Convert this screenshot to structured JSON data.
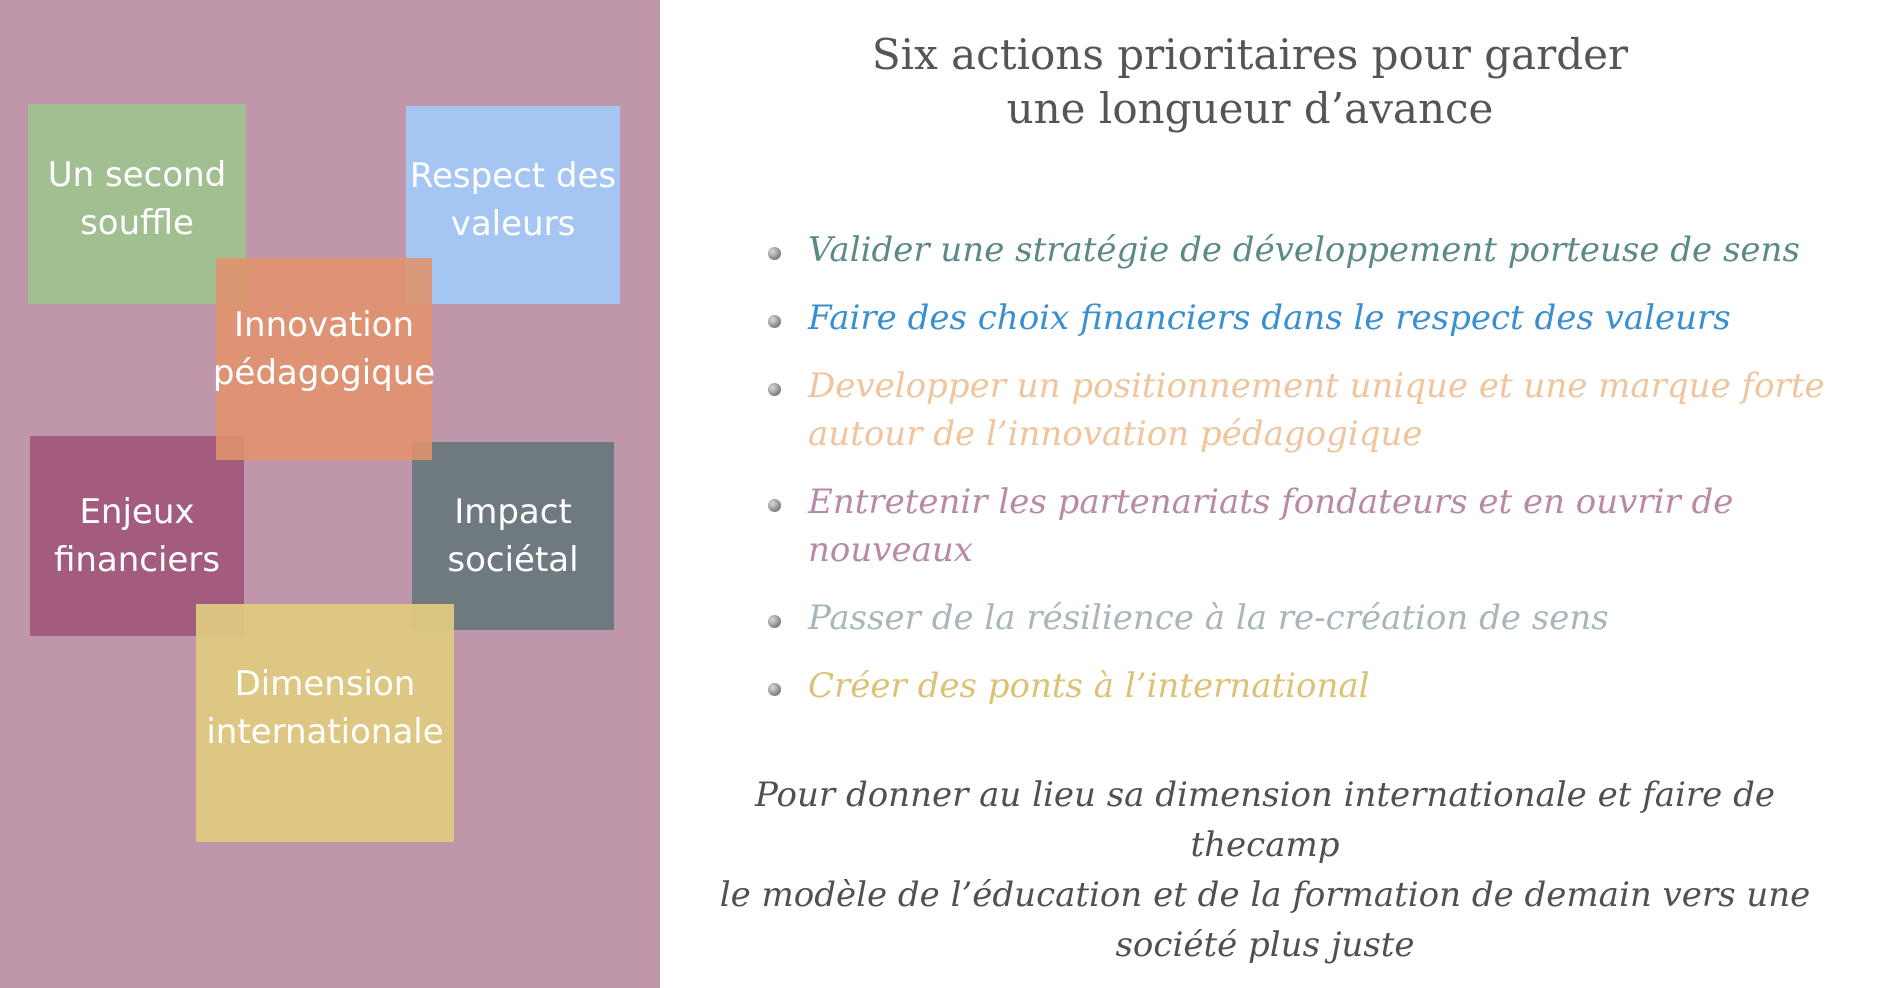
{
  "diagram": {
    "boxes": [
      {
        "line1": "Un second",
        "line2": "souffle",
        "color": "#a2bf92"
      },
      {
        "line1": "Respect des",
        "line2": "valeurs",
        "color": "#a5c5f3"
      },
      {
        "line1": "Innovation",
        "line2": "pédagogique",
        "color": "#e0936c"
      },
      {
        "line1": "Enjeux",
        "line2": "financiers",
        "color": "#a35c7e"
      },
      {
        "line1": "Impact",
        "line2": "sociétal",
        "color": "#6e7a80"
      },
      {
        "line1": "Dimension",
        "line2": "internationale",
        "color": "#e0ca80"
      }
    ]
  },
  "title": {
    "line1": "Six actions prioritaires pour garder",
    "line2": "une longueur d’avance"
  },
  "actions": [
    {
      "text": "Valider une stratégie de développement porteuse de sens",
      "color": "#5b8a86"
    },
    {
      "text": "Faire des choix financiers dans le respect des valeurs",
      "color": "#3a8fd0"
    },
    {
      "text": "Developper un positionnement unique et une marque forte autour de l’innovation pédagogique",
      "color": "#f0c49c"
    },
    {
      "text": "Entretenir les partenariats fondateurs et en ouvrir de nouveaux",
      "color": "#b98aa3"
    },
    {
      "text": "Passer de la résilience à la re-création de sens",
      "color": "#a8b6ba"
    },
    {
      "text": "Créer des ponts à l’international",
      "color": "#dcc275"
    }
  ],
  "closing": {
    "line1": "Pour donner au lieu sa dimension internationale et faire de thecamp",
    "line2": "le modèle de l’éducation et de la formation de demain vers une",
    "line3": "société plus juste"
  }
}
